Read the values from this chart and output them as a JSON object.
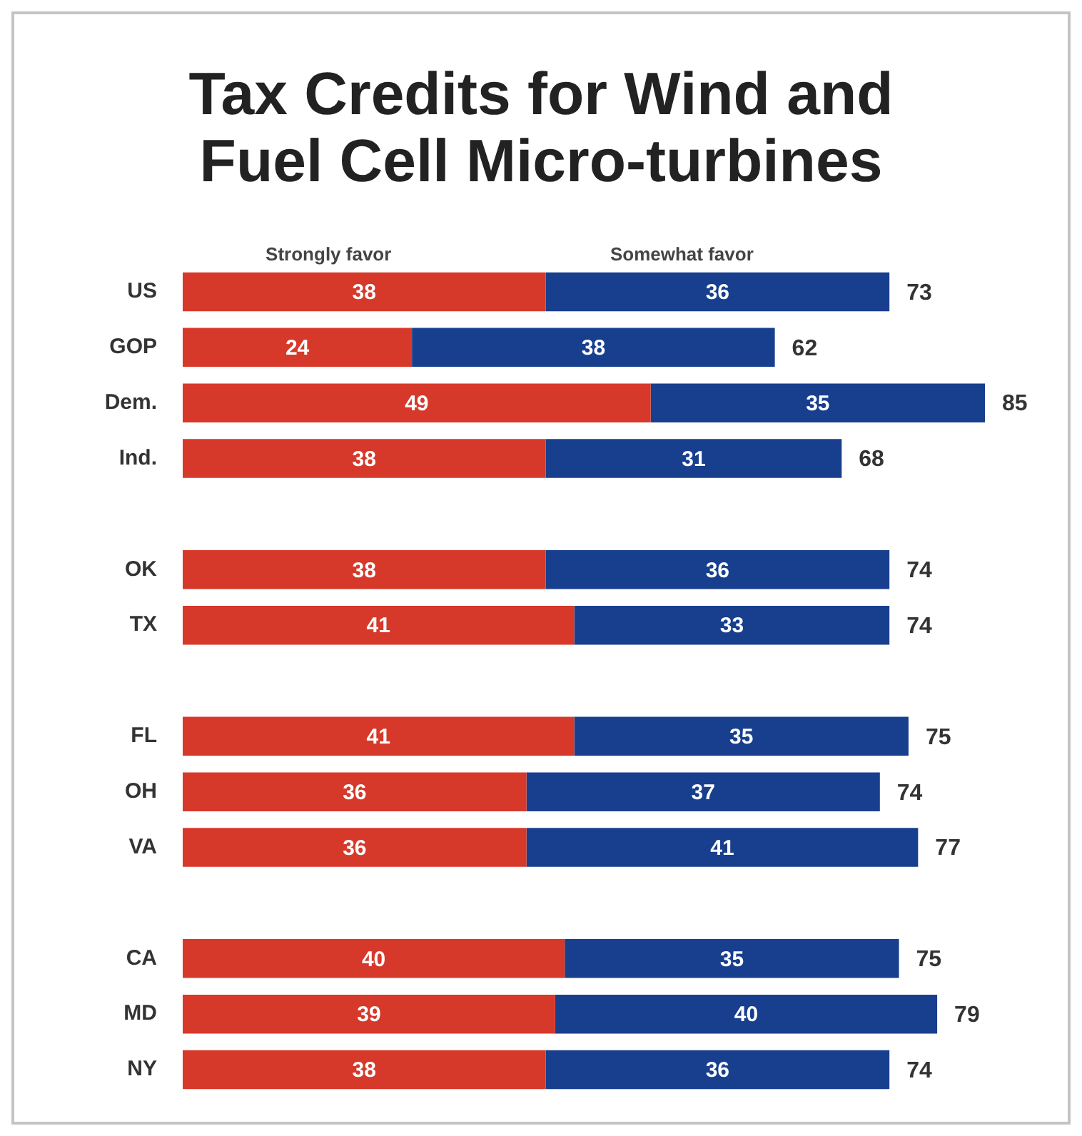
{
  "chart_data": {
    "type": "bar",
    "orientation": "horizontal",
    "stacked": true,
    "title": "Tax Credits for Wind and Fuel Cell Micro-turbines",
    "categories": [
      "US",
      "GOP",
      "Dem.",
      "Ind.",
      null,
      "OK",
      "TX",
      null,
      "FL",
      "OH",
      "VA",
      null,
      "CA",
      "MD",
      "NY"
    ],
    "series": [
      {
        "name": "Strongly favor",
        "color": "#d6392a",
        "values": [
          38,
          24,
          49,
          38,
          null,
          38,
          41,
          null,
          41,
          36,
          36,
          null,
          40,
          39,
          38
        ]
      },
      {
        "name": "Somewhat favor",
        "color": "#183f8e",
        "values": [
          36,
          38,
          35,
          31,
          null,
          36,
          33,
          null,
          35,
          37,
          41,
          null,
          35,
          40,
          36
        ]
      }
    ],
    "totals": [
      "73",
      "62",
      "85",
      "68",
      null,
      "74",
      "74",
      null,
      "75",
      "74",
      "77",
      null,
      "75",
      "79",
      "74"
    ],
    "data_labels": true,
    "tick_labels": "y",
    "grid": false
  }
}
